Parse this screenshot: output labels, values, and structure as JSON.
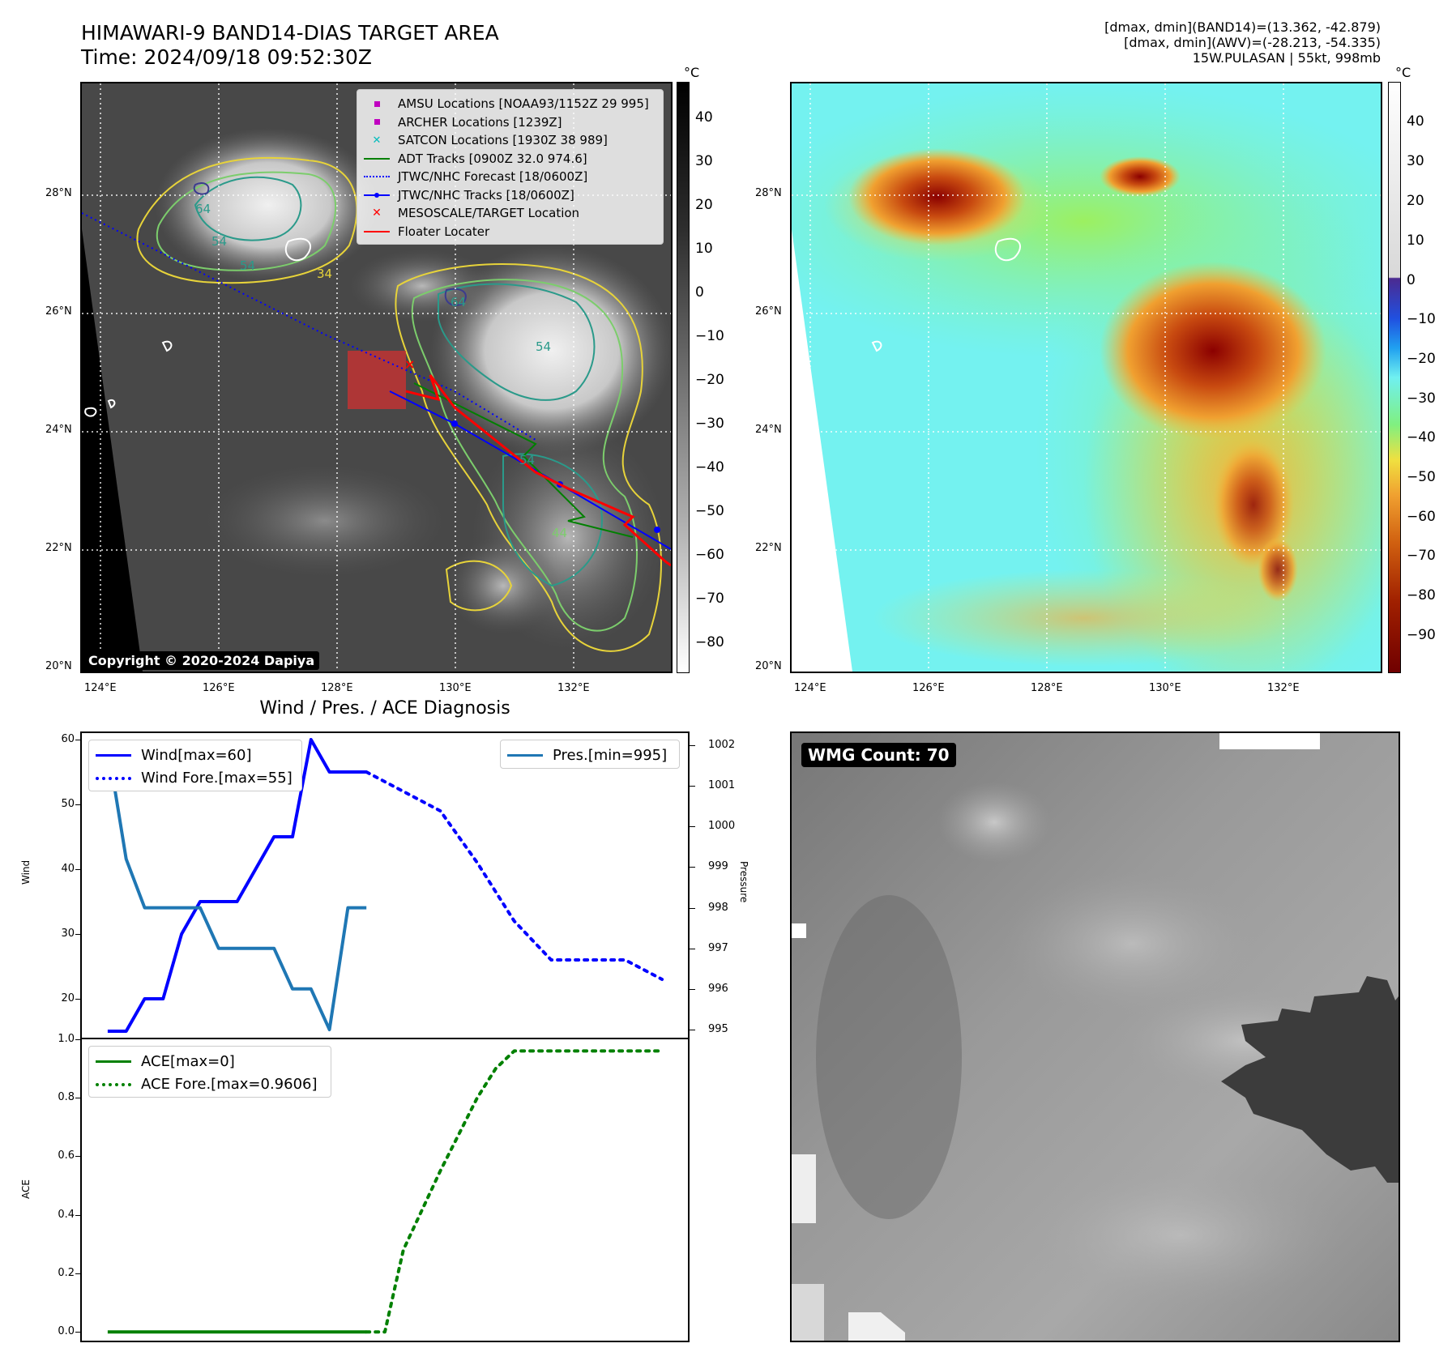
{
  "header": {
    "title_line1": "HIMAWARI-9 BAND14-DIAS TARGET AREA",
    "title_line2": "Time: 2024/09/18 09:52:30Z",
    "info_line1": "[dmax, dmin](BAND14)=(13.362, -42.879)",
    "info_line2": "[dmax, dmin](AWV)=(-28.213, -54.335)",
    "info_line3": "15W.PULASAN | 55kt, 998mb"
  },
  "map": {
    "lon_labels": [
      "124°E",
      "126°E",
      "128°E",
      "130°E",
      "132°E"
    ],
    "lat_labels": [
      "28°N",
      "26°N",
      "24°N",
      "22°N",
      "20°N"
    ],
    "copyright": "Copyright © 2020-2024 Dapiya",
    "unit": "°C",
    "left_colorbar_ticks": [
      "40",
      "30",
      "20",
      "10",
      "0",
      "−10",
      "−20",
      "−30",
      "−40",
      "−50",
      "−60",
      "−70",
      "−80"
    ],
    "right_colorbar_ticks": [
      "40",
      "30",
      "20",
      "10",
      "0",
      "−10",
      "−20",
      "−30",
      "−40",
      "−50",
      "−60",
      "−70",
      "−80",
      "−90"
    ],
    "contour_labels": [
      "64",
      "54",
      "54",
      "64",
      "54",
      "54",
      "44",
      "34"
    ],
    "legend": [
      {
        "label": "AMSU Locations [NOAA93/1152Z 29 995]",
        "icon": "magenta-square"
      },
      {
        "label": "ARCHER Locations [1239Z]",
        "icon": "magenta-square"
      },
      {
        "label": "SATCON Locations [1930Z 38 989]",
        "icon": "cyan-x"
      },
      {
        "label": "ADT Tracks [0900Z 32.0 974.6]",
        "icon": "green-line"
      },
      {
        "label": "JTWC/NHC Forecast [18/0600Z]",
        "icon": "blue-dotted-line"
      },
      {
        "label": "JTWC/NHC Tracks [18/0600Z]",
        "icon": "blue-line-dot"
      },
      {
        "label": "MESOSCALE/TARGET Location",
        "icon": "red-x"
      },
      {
        "label": "Floater Locater",
        "icon": "red-line"
      }
    ]
  },
  "diag": {
    "title": "Wind / Pres. / ACE Diagnosis",
    "wind_label": "Wind",
    "pressure_label": "Pressure",
    "ace_label": "ACE",
    "wind_ticks": [
      "60",
      "50",
      "40",
      "30",
      "20"
    ],
    "pressure_ticks": [
      "1002",
      "1001",
      "1000",
      "999",
      "998",
      "997",
      "996",
      "995"
    ],
    "ace_ticks": [
      "1.0",
      "0.8",
      "0.6",
      "0.4",
      "0.2",
      "0.0"
    ],
    "legend_wind": "Wind[max=60]",
    "legend_wind_fore": "Wind Fore.[max=55]",
    "legend_pres": "Pres.[min=995]",
    "legend_ace": "ACE[max=0]",
    "legend_ace_fore": "ACE Fore.[max=0.9606]",
    "colors": {
      "wind": "#0000ff",
      "pressure": "#1f77b4",
      "ace": "#008000"
    }
  },
  "wmg": {
    "label": "WMG Count: 70"
  },
  "chart_data": [
    {
      "type": "line",
      "title": "Wind / Pres. / ACE Diagnosis",
      "ylabel": "Wind",
      "ylim": [
        14,
        61
      ],
      "series": [
        {
          "name": "Wind[max=60]",
          "x": [
            0,
            1,
            2,
            3,
            4,
            5,
            6,
            7,
            8,
            9,
            10,
            11,
            12,
            13,
            14
          ],
          "values": [
            15,
            15,
            20,
            20,
            30,
            35,
            35,
            35,
            40,
            45,
            45,
            60,
            55,
            55,
            55
          ]
        },
        {
          "name": "Wind Fore.[max=55]",
          "x": [
            14,
            16,
            18,
            20,
            22,
            24,
            26,
            28,
            30
          ],
          "values": [
            55,
            52,
            49,
            41,
            32,
            26,
            26,
            26,
            23
          ]
        }
      ]
    },
    {
      "type": "line",
      "ylabel": "Pressure",
      "ylim": [
        994.8,
        1002.3
      ],
      "series": [
        {
          "name": "Pres.[min=995]",
          "x": [
            0,
            1,
            2,
            3,
            4,
            5,
            6,
            7,
            8,
            9,
            10,
            11,
            12,
            13,
            14
          ],
          "values": [
            1002,
            999.2,
            998,
            998,
            998,
            998,
            997,
            997,
            997,
            997,
            996,
            996,
            995,
            998,
            998
          ]
        }
      ]
    },
    {
      "type": "line",
      "ylabel": "ACE",
      "ylim": [
        -0.03,
        1.0
      ],
      "series": [
        {
          "name": "ACE[max=0]",
          "x": [
            0,
            14
          ],
          "values": [
            0,
            0
          ]
        },
        {
          "name": "ACE Fore.[max=0.9606]",
          "x": [
            14,
            15,
            16,
            18,
            20,
            21,
            22,
            24,
            26,
            28,
            30
          ],
          "values": [
            0,
            0,
            0.28,
            0.55,
            0.8,
            0.9,
            0.96,
            0.96,
            0.96,
            0.96,
            0.96
          ]
        }
      ]
    }
  ]
}
